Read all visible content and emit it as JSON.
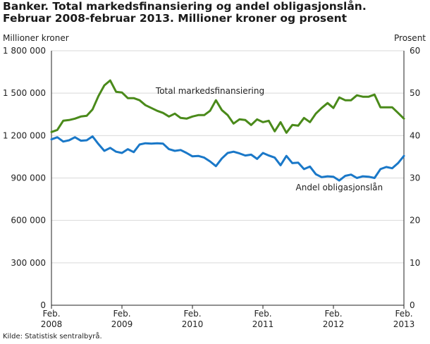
{
  "title": {
    "line1": "Banker. Total markedsfinansiering og andel obligasjonslån.",
    "line2": "Februar 2008-februar 2013. Millioner kroner og prosent"
  },
  "source": "Kilde: Statistisk sentralbyrå.",
  "colors": {
    "series_total": "#4a8a1a",
    "series_andel": "#1a78c8",
    "axis": "#222222"
  },
  "chart_data": {
    "type": "line",
    "xlabel": "",
    "ylabel_left": "Millioner kroner",
    "ylabel_right": "Prosent",
    "ylim_left": [
      0,
      1800000
    ],
    "ylim_right": [
      0,
      60
    ],
    "yticks_left": [
      "0",
      "300 000",
      "600 000",
      "900 000",
      "1 200 000",
      "1 500 000",
      "1 800 000"
    ],
    "yticks_right": [
      "0",
      "10",
      "20",
      "30",
      "40",
      "50",
      "60"
    ],
    "x_ticks": [
      {
        "month": 0,
        "line1": "Feb.",
        "line2": "2008"
      },
      {
        "month": 12,
        "line1": "Feb.",
        "line2": "2009"
      },
      {
        "month": 24,
        "line1": "Feb.",
        "line2": "2010"
      },
      {
        "month": 36,
        "line1": "Feb.",
        "line2": "2011"
      },
      {
        "month": 48,
        "line1": "Feb.",
        "line2": "2012"
      },
      {
        "month": 60,
        "line1": "Feb.",
        "line2": "2013"
      }
    ],
    "grid": true,
    "series": [
      {
        "name": "Total markedsfinansiering",
        "axis": "left",
        "values": [
          1225000,
          1240000,
          1305000,
          1310000,
          1320000,
          1335000,
          1340000,
          1385000,
          1480000,
          1555000,
          1590000,
          1510000,
          1505000,
          1465000,
          1465000,
          1450000,
          1415000,
          1395000,
          1375000,
          1360000,
          1335000,
          1355000,
          1325000,
          1320000,
          1335000,
          1345000,
          1345000,
          1375000,
          1450000,
          1380000,
          1345000,
          1285000,
          1315000,
          1310000,
          1275000,
          1315000,
          1295000,
          1305000,
          1230000,
          1295000,
          1220000,
          1275000,
          1270000,
          1325000,
          1295000,
          1355000,
          1395000,
          1430000,
          1395000,
          1470000,
          1450000,
          1450000,
          1485000,
          1475000,
          1475000,
          1490000,
          1400000,
          1400000,
          1400000,
          1360000,
          1320000
        ]
      },
      {
        "name": "Andel obligasjonslån",
        "axis": "right",
        "values": [
          39.1,
          39.6,
          38.6,
          38.9,
          39.6,
          38.8,
          38.9,
          39.8,
          38.0,
          36.4,
          37.1,
          36.2,
          35.9,
          36.8,
          36.1,
          37.9,
          38.2,
          38.1,
          38.2,
          38.1,
          36.8,
          36.4,
          36.6,
          35.9,
          35.1,
          35.2,
          34.8,
          33.9,
          32.8,
          34.6,
          35.9,
          36.2,
          35.8,
          35.3,
          35.5,
          34.5,
          35.9,
          35.3,
          34.8,
          33.0,
          35.2,
          33.5,
          33.6,
          32.1,
          32.7,
          30.9,
          30.2,
          30.4,
          30.3,
          29.4,
          30.5,
          30.8,
          30.0,
          30.4,
          30.3,
          30.0,
          32.1,
          32.6,
          32.3,
          33.5,
          35.2
        ]
      }
    ],
    "annotations": [
      {
        "series": 0,
        "text": "Total markedsfinansiering",
        "month": 27,
        "value": 1495000
      },
      {
        "series": 1,
        "text": "Andel obligasjonslån",
        "month": 49,
        "value": 27.1
      }
    ]
  }
}
